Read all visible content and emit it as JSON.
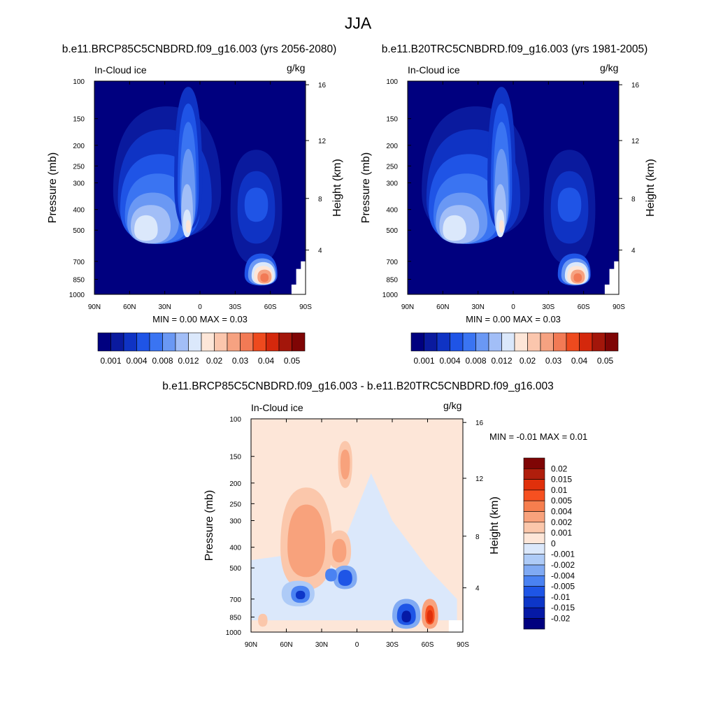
{
  "figure": {
    "title": "JJA",
    "panels": [
      {
        "case_title": "b.e11.BRCP85C5CNBDRD.f09_g16.003 (yrs 2056-2080)",
        "variable": "In-Cloud ice",
        "units": "g/kg",
        "ylabel": "Pressure (mb)",
        "y2label": "Height (km)",
        "minmax": "MIN =   0.00  MAX =   0.03"
      },
      {
        "case_title": "b.e11.B20TRC5CNBDRD.f09_g16.003 (yrs 1981-2005)",
        "variable": "In-Cloud ice",
        "units": "g/kg",
        "ylabel": "Pressure (mb)",
        "y2label": "Height (km)",
        "minmax": "MIN =   0.00  MAX =   0.03"
      },
      {
        "case_title": "b.e11.BRCP85C5CNBDRD.f09_g16.003 - b.e11.B20TRC5CNBDRD.f09_g16.003",
        "variable": "In-Cloud ice",
        "units": "g/kg",
        "ylabel": "Pressure (mb)",
        "y2label": "Height (km)",
        "minmax": "MIN =  -0.01  MAX =   0.01"
      }
    ]
  },
  "colorbars": {
    "absolute": {
      "colors": [
        "#00007f",
        "#0a1a9e",
        "#0f33c4",
        "#1f54e6",
        "#3a74f2",
        "#6a98f4",
        "#a2bef7",
        "#dbe8fb",
        "#fde6d8",
        "#fbc6ad",
        "#f6a281",
        "#f27a55",
        "#ee4a1e",
        "#d4280c",
        "#a3160a",
        "#7f0505"
      ],
      "labels": [
        "0.001",
        "0.004",
        "0.008",
        "0.012",
        "0.02",
        "0.03",
        "0.04",
        "0.05"
      ]
    },
    "difference": {
      "colors": [
        "#7f0505",
        "#b01e0c",
        "#e0300b",
        "#f65020",
        "#f67e4e",
        "#f8a27c",
        "#fbc7ab",
        "#fde6d8",
        "#dbe8fb",
        "#aecbf7",
        "#80aaf3",
        "#4a82f2",
        "#1e55e6",
        "#0d36c8",
        "#0519a6",
        "#00007f"
      ],
      "labels": [
        "0.02",
        "0.015",
        "0.01",
        "0.005",
        "0.004",
        "0.002",
        "0.001",
        "0",
        "-0.001",
        "-0.002",
        "-0.004",
        "-0.005",
        "-0.01",
        "-0.015",
        "-0.02"
      ]
    }
  },
  "chart_data": [
    {
      "type": "heatmap",
      "title": "b.e11.BRCP85C5CNBDRD.f09_g16.003 (yrs 2056-2080)",
      "xlabel": "",
      "ylabel": "Pressure (mb)",
      "y2label": "Height (km)",
      "x_ticks": [
        "90N",
        "60N",
        "30N",
        "0",
        "30S",
        "60S",
        "90S"
      ],
      "y_ticks": [
        "100",
        "150",
        "200",
        "250",
        "300",
        "400",
        "500",
        "700",
        "850",
        "1000"
      ],
      "y2_ticks": [
        "4",
        "8",
        "12",
        "16"
      ],
      "ylim": [
        1000,
        100
      ],
      "yscale": "log",
      "xlim": [
        90,
        -90
      ],
      "min": 0.0,
      "max": 0.03,
      "features": [
        {
          "lat": 48,
          "p": 500,
          "value": 0.02
        },
        {
          "lat": 10,
          "p": 470,
          "value": 0.02
        },
        {
          "lat": 10,
          "p": 200,
          "value": 0.008
        },
        {
          "lat": -55,
          "p": 830,
          "value": 0.03
        },
        {
          "lat": -48,
          "p": 380,
          "value": 0.004
        }
      ]
    },
    {
      "type": "heatmap",
      "title": "b.e11.B20TRC5CNBDRD.f09_g16.003 (yrs 1981-2005)",
      "xlabel": "",
      "ylabel": "Pressure (mb)",
      "y2label": "Height (km)",
      "x_ticks": [
        "90N",
        "60N",
        "30N",
        "0",
        "30S",
        "60S",
        "90S"
      ],
      "y_ticks": [
        "100",
        "150",
        "200",
        "250",
        "300",
        "400",
        "500",
        "700",
        "850",
        "1000"
      ],
      "y2_ticks": [
        "4",
        "8",
        "12",
        "16"
      ],
      "ylim": [
        1000,
        100
      ],
      "yscale": "log",
      "xlim": [
        90,
        -90
      ],
      "min": 0.0,
      "max": 0.03,
      "features": [
        {
          "lat": 50,
          "p": 550,
          "value": 0.02
        },
        {
          "lat": 10,
          "p": 480,
          "value": 0.02
        },
        {
          "lat": 10,
          "p": 220,
          "value": 0.008
        },
        {
          "lat": -52,
          "p": 830,
          "value": 0.03
        },
        {
          "lat": -48,
          "p": 380,
          "value": 0.004
        }
      ]
    },
    {
      "type": "heatmap",
      "title": "b.e11.BRCP85C5CNBDRD.f09_g16.003 - b.e11.B20TRC5CNBDRD.f09_g16.003",
      "xlabel": "",
      "ylabel": "Pressure (mb)",
      "y2label": "Height (km)",
      "x_ticks": [
        "90N",
        "60N",
        "30N",
        "0",
        "30S",
        "60S",
        "90S"
      ],
      "y_ticks": [
        "100",
        "150",
        "200",
        "250",
        "300",
        "400",
        "500",
        "700",
        "850",
        "1000"
      ],
      "y2_ticks": [
        "4",
        "8",
        "12",
        "16"
      ],
      "ylim": [
        1000,
        100
      ],
      "yscale": "log",
      "xlim": [
        90,
        -90
      ],
      "min": -0.01,
      "max": 0.01,
      "features": [
        {
          "lat": 43,
          "p": 400,
          "value": 0.004
        },
        {
          "lat": 10,
          "p": 160,
          "value": 0.004
        },
        {
          "lat": 15,
          "p": 420,
          "value": 0.004
        },
        {
          "lat": -62,
          "p": 840,
          "value": 0.015
        },
        {
          "lat": 50,
          "p": 650,
          "value": -0.005
        },
        {
          "lat": 10,
          "p": 550,
          "value": -0.01
        },
        {
          "lat": -42,
          "p": 840,
          "value": -0.015
        }
      ]
    }
  ]
}
